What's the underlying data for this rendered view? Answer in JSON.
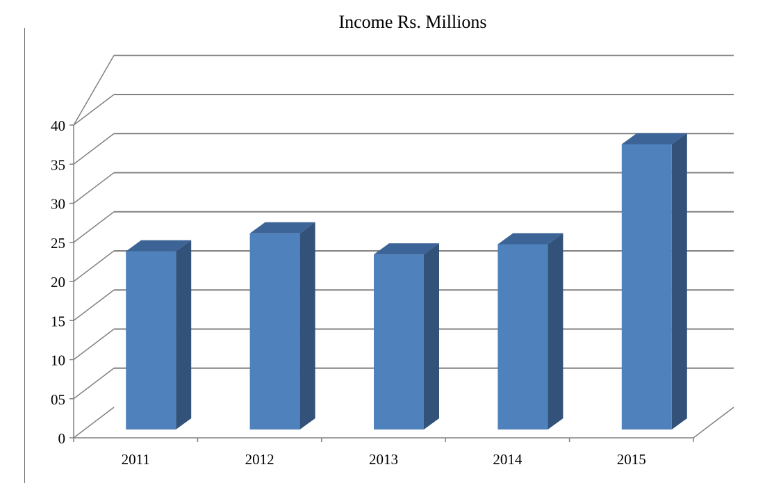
{
  "chart_data": {
    "type": "bar",
    "style": "3d-column",
    "title": "Income Rs. Millions",
    "xlabel": "",
    "ylabel": "",
    "categories": [
      "2011",
      "2012",
      "2013",
      "2014",
      "2015"
    ],
    "values": [
      23.5,
      25.8,
      23.1,
      24.4,
      37.2
    ],
    "ylim": [
      0,
      40
    ],
    "yticks": [
      "0",
      "05",
      "10",
      "15",
      "20",
      "25",
      "30",
      "35",
      "40"
    ],
    "grid": true,
    "legend": "none",
    "colors": {
      "bar_front": "#4f81bd",
      "bar_side": "#32527a",
      "bar_top": "#3c6496",
      "grid": "#808080",
      "axis": "#808080"
    }
  }
}
